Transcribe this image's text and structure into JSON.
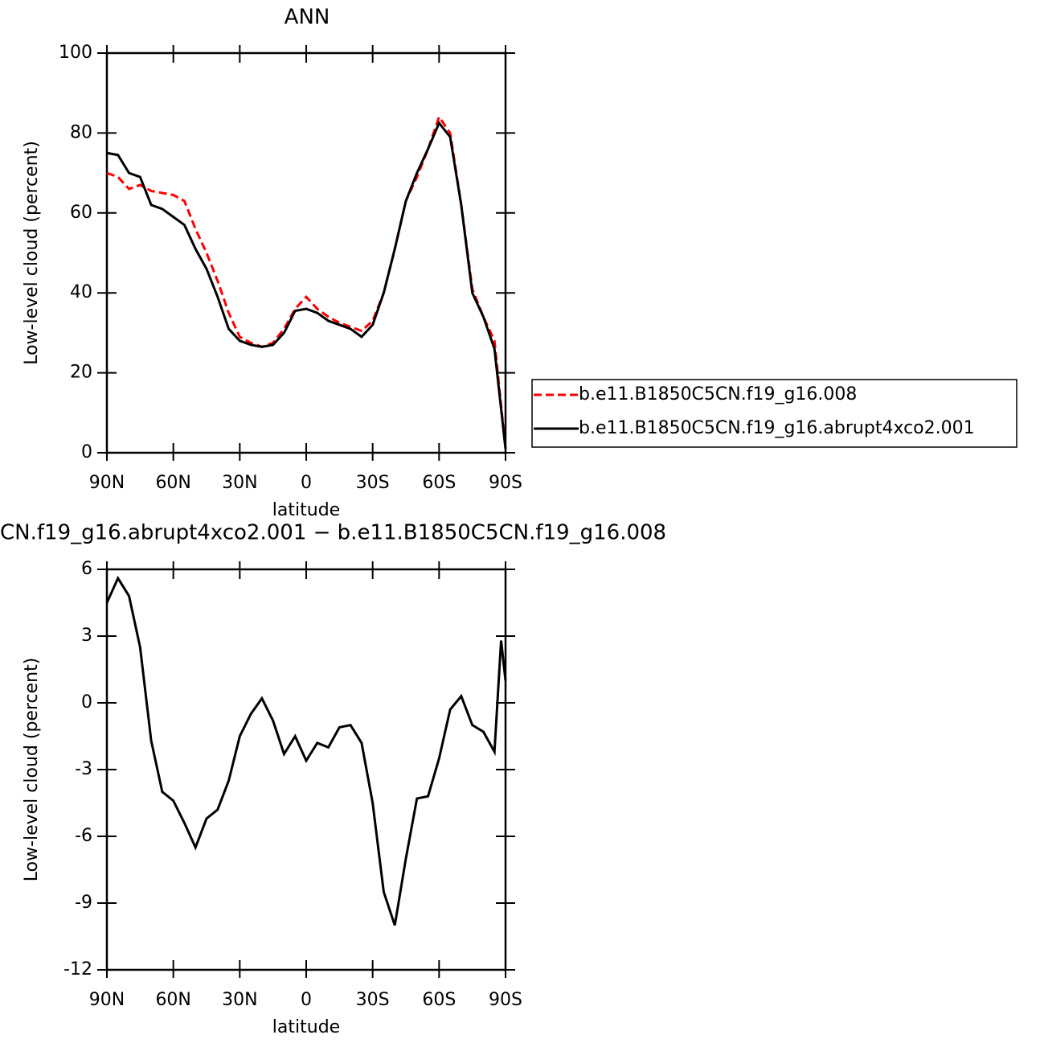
{
  "chart_data": [
    {
      "type": "line",
      "title": "ANN",
      "xlabel": "latitude",
      "ylabel": "Low-level cloud (percent)",
      "x": [
        90,
        85,
        80,
        75,
        70,
        65,
        60,
        55,
        50,
        45,
        40,
        35,
        30,
        25,
        20,
        15,
        10,
        5,
        0,
        -5,
        -10,
        -15,
        -20,
        -25,
        -30,
        -35,
        -40,
        -45,
        -50,
        -55,
        -60,
        -65,
        -70,
        -75,
        -80,
        -85,
        -90
      ],
      "series": [
        {
          "name": "b.e11.B1850C5CN.f19_g16.008",
          "color": "#ff0000",
          "dashed": true,
          "values": [
            70,
            69,
            66,
            67,
            65.5,
            65,
            64.5,
            63,
            56,
            50,
            43,
            35,
            29,
            27.5,
            26.5,
            27.5,
            31,
            36,
            39,
            36,
            34,
            32.5,
            31.5,
            30.5,
            33,
            40,
            51,
            63,
            69,
            76,
            84,
            80,
            62,
            41,
            34,
            28,
            1
          ]
        },
        {
          "name": "b.e11.B1850C5CN.f19_g16.abrupt4xco2.001",
          "color": "#000000",
          "dashed": false,
          "values": [
            75,
            74.5,
            70,
            69,
            62,
            61,
            59,
            57,
            51,
            46,
            39,
            31,
            28,
            27,
            26.5,
            27,
            30,
            35.5,
            36,
            35,
            33,
            32,
            31,
            29,
            32,
            40,
            51,
            63,
            70,
            76,
            82.5,
            79,
            62,
            40,
            34,
            26,
            1
          ]
        }
      ],
      "xlim": [
        90,
        -90
      ],
      "xticks": [
        {
          "value": 90,
          "label": "90N"
        },
        {
          "value": 60,
          "label": "60N"
        },
        {
          "value": 30,
          "label": "30N"
        },
        0,
        {
          "value": -30,
          "label": "30S"
        },
        {
          "value": -60,
          "label": "60S"
        },
        {
          "value": -90,
          "label": "90S"
        }
      ],
      "ylim": [
        0,
        100
      ],
      "yticks": [
        0,
        20,
        40,
        60,
        80,
        100
      ],
      "legend": "right"
    },
    {
      "type": "line",
      "title": "CN.f19_g16.abrupt4xco2.001 − b.e11.B1850C5CN.f19_g16.008",
      "xlabel": "latitude",
      "ylabel": "Low-level cloud (percent)",
      "x": [
        90,
        85,
        80,
        75,
        70,
        65,
        60,
        55,
        50,
        45,
        40,
        35,
        30,
        25,
        20,
        15,
        10,
        5,
        0,
        -5,
        -10,
        -15,
        -20,
        -25,
        -30,
        -35,
        -40,
        -45,
        -50,
        -55,
        -60,
        -65,
        -70,
        -75,
        -80,
        -85,
        -88,
        -90
      ],
      "series": [
        {
          "color": "#000000",
          "dashed": false,
          "values": [
            4.5,
            5.6,
            4.8,
            2.5,
            -1.7,
            -4.0,
            -4.4,
            -5.4,
            -6.5,
            -5.2,
            -4.8,
            -3.5,
            -1.5,
            -0.5,
            0.2,
            -0.8,
            -2.3,
            -1.5,
            -2.6,
            -1.8,
            -2.0,
            -1.1,
            -1.0,
            -1.8,
            -4.5,
            -8.5,
            -10,
            -7,
            -4.3,
            -4.2,
            -2.5,
            -0.3,
            0.3,
            -1.0,
            -1.3,
            -2.2,
            2.8,
            1
          ]
        }
      ],
      "xlim": [
        90,
        -90
      ],
      "xticks": [
        {
          "value": 90,
          "label": "90N"
        },
        {
          "value": 60,
          "label": "60N"
        },
        {
          "value": 30,
          "label": "30N"
        },
        0,
        {
          "value": -30,
          "label": "30S"
        },
        {
          "value": -60,
          "label": "60S"
        },
        {
          "value": -90,
          "label": "90S"
        }
      ],
      "ylim": [
        -12,
        6
      ],
      "yticks": [
        -12,
        -9,
        -6,
        -3,
        0,
        3,
        6
      ]
    }
  ]
}
